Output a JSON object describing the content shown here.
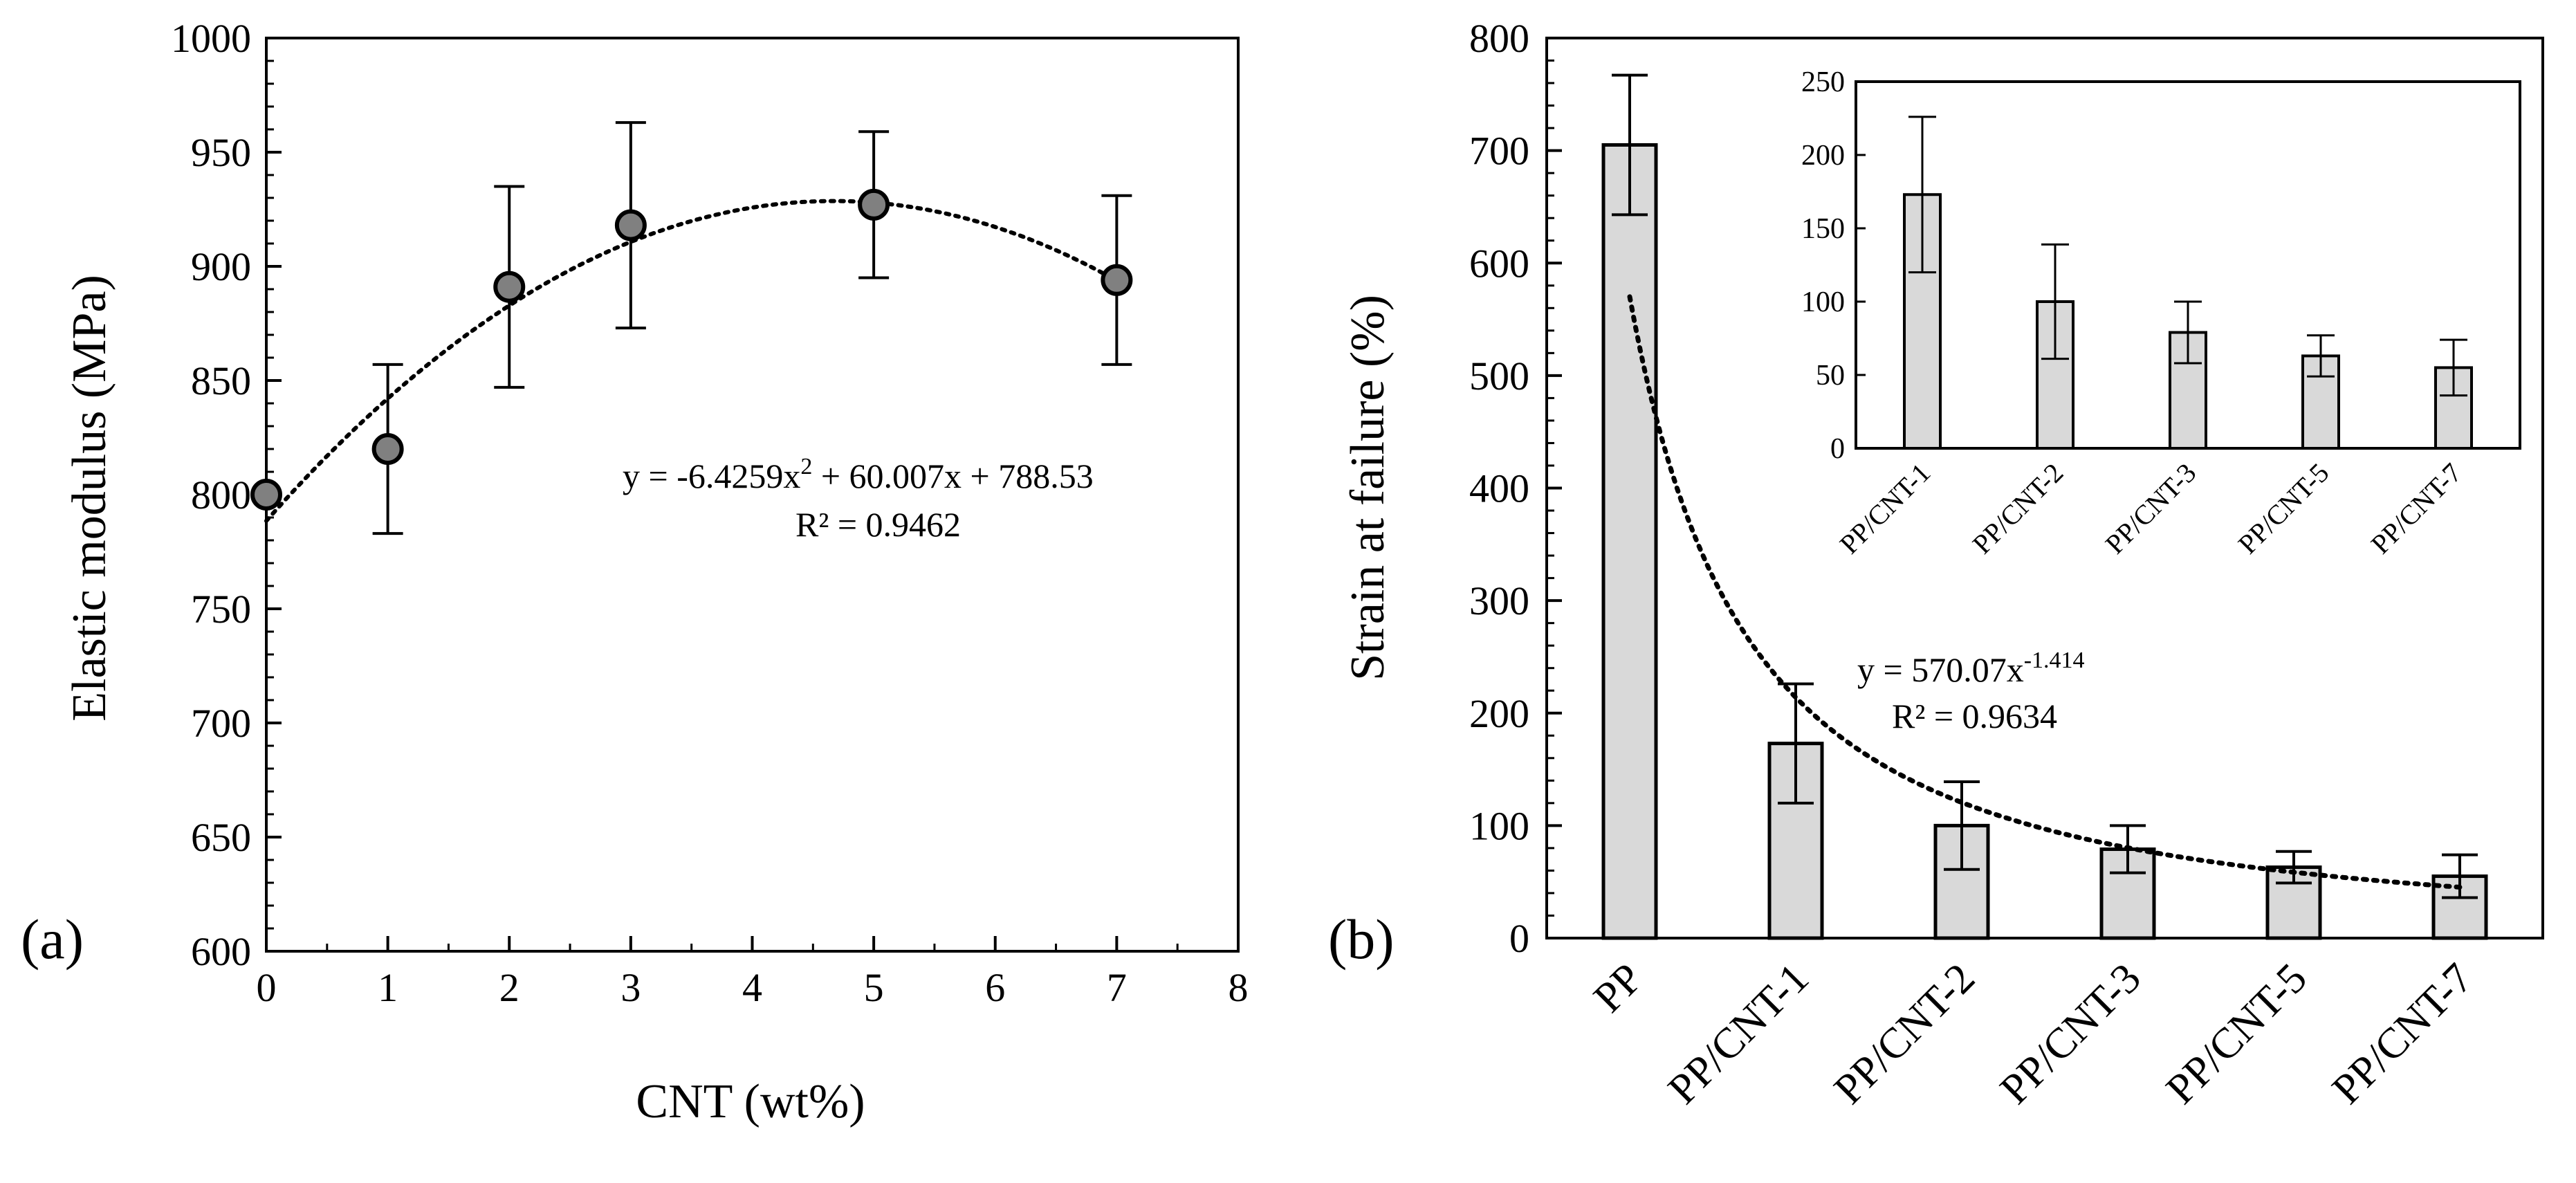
{
  "chart_data": [
    {
      "panel": "(a)",
      "type": "scatter",
      "xlabel": "CNT (wt%)",
      "ylabel": "Elastic modulus (MPa)",
      "xlim": [
        0,
        8
      ],
      "ylim": [
        600,
        1000
      ],
      "xticks": [
        "0",
        "1",
        "2",
        "3",
        "4",
        "5",
        "6",
        "7",
        "8"
      ],
      "yticks": [
        "600",
        "650",
        "700",
        "750",
        "800",
        "850",
        "900",
        "950",
        "1000"
      ],
      "x": [
        0,
        1,
        2,
        3,
        5,
        7
      ],
      "y": [
        800,
        820,
        891,
        918,
        927,
        894
      ],
      "err": [
        0,
        37,
        44,
        45,
        32,
        37
      ],
      "fit": {
        "type": "polynomial",
        "coefficients": [
          -6.4259,
          60.007,
          788.53
        ],
        "eq_prefix": "y = -6.4259x",
        "eq_sup": "2",
        "eq_suffix": " + 60.007x + 788.53",
        "r2": "R² = 0.9462"
      }
    },
    {
      "panel": "(b)",
      "type": "bar",
      "ylabel": "Strain at failure (%)",
      "ylim": [
        0,
        800
      ],
      "yticks": [
        "0",
        "100",
        "200",
        "300",
        "400",
        "500",
        "600",
        "700",
        "800"
      ],
      "categories": [
        "PP",
        "PP/CNT-1",
        "PP/CNT-2",
        "PP/CNT-3",
        "PP/CNT-5",
        "PP/CNT-7"
      ],
      "values": [
        705,
        173,
        100,
        79,
        63,
        55
      ],
      "err": [
        62,
        53,
        39,
        21,
        14,
        19
      ],
      "fit": {
        "type": "power",
        "a": 570.07,
        "b": -1.414,
        "eq_prefix": "y = 570.07x",
        "eq_sup": "-1.414",
        "r2": "R² = 0.9634"
      },
      "inset": {
        "type": "bar",
        "ylim": [
          0,
          250
        ],
        "yticks": [
          "0",
          "50",
          "100",
          "150",
          "200",
          "250"
        ],
        "categories": [
          "PP/CNT-1",
          "PP/CNT-2",
          "PP/CNT-3",
          "PP/CNT-5",
          "PP/CNT-7"
        ],
        "values": [
          173,
          100,
          79,
          63,
          55
        ],
        "err": [
          53,
          39,
          21,
          14,
          19
        ]
      }
    }
  ],
  "colors": {
    "marker_fill": "#808080",
    "bar_fill": "#d9d9d9",
    "stroke": "#000000"
  }
}
